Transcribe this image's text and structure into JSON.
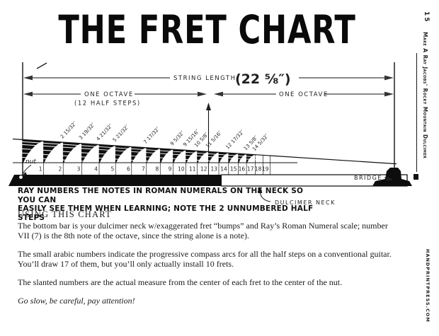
{
  "page": {
    "title": "THE FRET CHART",
    "page_number": "15",
    "sidebar_title": "Make A Ray Jacobs' Rocky Mountain Dulcimer",
    "sidebar_site": "HANDPRINTPRESS.COM"
  },
  "chart": {
    "string_length_label": "STRING LENGTH",
    "string_length_value": "(22 ⅝″)",
    "left_octave_label": "ONE OCTAVE",
    "left_octave_sub": "(12 HALF STEPS)",
    "right_octave_label": "ONE OCTAVE",
    "nut_label": "nut",
    "bridge_label": "BRIDGE",
    "neck_label": "DULCIMER NECK",
    "scale_length_in": 22.625,
    "arc_count": 17,
    "installed_frets": 10,
    "frets": [
      {
        "n": 1,
        "in": 1.27
      },
      {
        "n": 2,
        "in": 2.469,
        "roman": "I",
        "measure": "2 15/32″"
      },
      {
        "n": 3,
        "in": 3.594,
        "measure": "3 19/32″"
      },
      {
        "n": 4,
        "in": 4.656,
        "roman": "II",
        "measure": "4 21/32″"
      },
      {
        "n": 5,
        "in": 5.656,
        "roman": "III",
        "measure": "5 21/32″"
      },
      {
        "n": 6,
        "in": 6.625
      },
      {
        "n": 7,
        "in": 7.531,
        "roman": "IV",
        "measure": "7 17/32″"
      },
      {
        "n": 8,
        "in": 8.375
      },
      {
        "n": 9,
        "in": 9.156,
        "roman": "V",
        "measure": "9 5/32″"
      },
      {
        "n": 10,
        "in": 9.938,
        "measure": "9 15/16″"
      },
      {
        "n": 11,
        "in": 10.625,
        "roman": "VI",
        "measure": "10 5/8″"
      },
      {
        "n": 12,
        "in": 11.313,
        "roman": "VII",
        "measure": "11 5/16″"
      },
      {
        "n": 13,
        "in": 11.938
      },
      {
        "n": 14,
        "in": 12.531,
        "roman": "VIII",
        "measure": "12 17/32″"
      },
      {
        "n": 15,
        "in": 13.125
      },
      {
        "n": 16,
        "in": 13.625,
        "roman": "IX",
        "measure": "13 5/8″"
      },
      {
        "n": 17,
        "in": 14.156,
        "roman": "X",
        "measure": "14 5/32″"
      },
      {
        "n": 18,
        "in": 14.625
      },
      {
        "n": 19,
        "in": 15.063
      }
    ]
  },
  "caption": {
    "line1": "RAY NUMBERS THE NOTES IN ROMAN NUMERALS ON THE NECK SO YOU CAN",
    "line2": "EASILY SEE THEM WHEN LEARNING; NOTE THE 2 UNNUMBERED HALF STEPS"
  },
  "body": {
    "heading": "USING THIS CHART",
    "paragraphs": [
      {
        "lines": [
          "The bottom bar is your dulcimer neck w/exaggerated fret “bumps” and Ray’s Roman Numeral scale; number",
          "VII (7) is the 8th note of the octave, since the string alone is a note)."
        ]
      },
      {
        "lines": [
          "The small arabic numbers indicate the progressive compass arcs for all the half steps on a conventional guitar.",
          "You’ll draw 17 of them, but you’ll only actually install 10 frets."
        ]
      },
      {
        "lines": [
          "The slanted numbers are the actual measure from the center of each fret to the center of the nut."
        ]
      },
      {
        "lines": [
          "Go slow, be careful, pay attention!"
        ]
      }
    ]
  }
}
